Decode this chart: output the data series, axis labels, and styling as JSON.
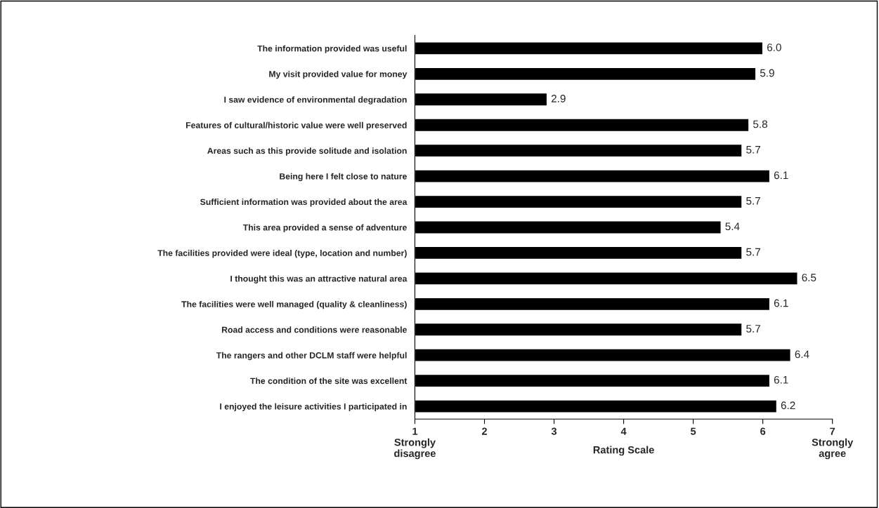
{
  "chart_data": {
    "type": "bar",
    "orientation": "horizontal",
    "xlabel": "Rating Scale",
    "categories": [
      "The information provided was useful",
      "My visit provided value for money",
      "I saw evidence of environmental degradation",
      "Features of cultural/historic value were well preserved",
      "Areas such as this provide solitude and isolation",
      "Being here I felt close to nature",
      "Sufficient information was provided about the area",
      "This area provided a sense of adventure",
      "The facilities provided were ideal (type, location and number)",
      "I thought this was an attractive natural area",
      "The facilities were well managed (quality & cleanliness)",
      "Road access and conditions were reasonable",
      "The rangers and other DCLM staff were helpful",
      "The condition of the site was excellent",
      "I enjoyed the leisure activities I participated in"
    ],
    "values": [
      6.0,
      5.9,
      2.9,
      5.8,
      5.7,
      6.1,
      5.7,
      5.4,
      5.7,
      6.5,
      6.1,
      5.7,
      6.4,
      6.1,
      6.2
    ],
    "value_labels": [
      "6.0",
      "5.9",
      "2.9",
      "5.8",
      "5.7",
      "6.1",
      "5.7",
      "5.4",
      "5.7",
      "6.5",
      "6.1",
      "5.7",
      "6.4",
      "6.1",
      "6.2"
    ],
    "color": "#000000",
    "xlim": [
      1,
      7
    ],
    "xticks": [
      {
        "value": 1,
        "label": "1\nStrongly\ndisagree"
      },
      2,
      3,
      4,
      5,
      6,
      {
        "value": 7,
        "label": "7\nStrongly\nagree"
      }
    ],
    "grid": false,
    "legend": false
  }
}
